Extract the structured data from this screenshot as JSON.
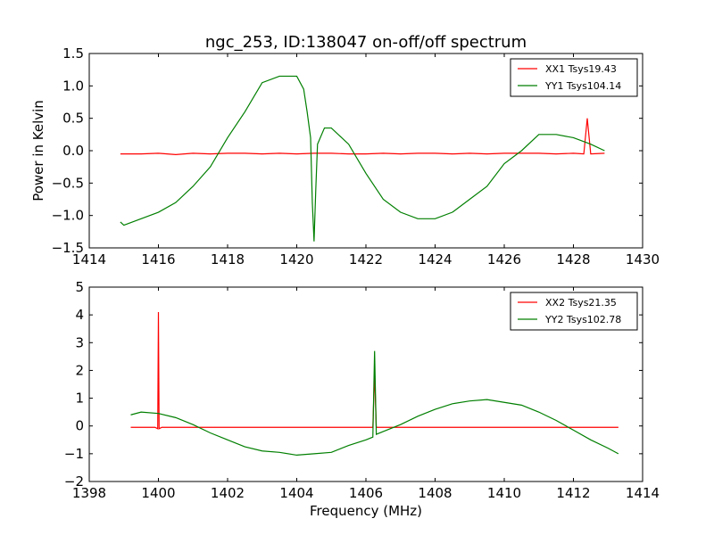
{
  "title": "ngc_253, ID:138047 on-off/off spectrum",
  "colors": {
    "red": "#ff0000",
    "green": "#007f00"
  },
  "chart_data": [
    {
      "type": "line",
      "ylabel": "Power in Kelvin",
      "xlabel": "",
      "xlim": [
        1414,
        1430
      ],
      "ylim": [
        -1.5,
        1.5
      ],
      "xticks": [
        1414,
        1416,
        1418,
        1420,
        1422,
        1424,
        1426,
        1428,
        1430
      ],
      "yticks": [
        -1.5,
        -1.0,
        -0.5,
        0.0,
        0.5,
        1.0,
        1.5
      ],
      "ytick_labels": [
        "−1.5",
        "−1.0",
        "−0.5",
        "0.0",
        "0.5",
        "1.0",
        "1.5"
      ],
      "legend_position": "top-right",
      "series": [
        {
          "name": "XX1 Tsys19.43",
          "color": "#ff0000",
          "x": [
            1414.9,
            1415.5,
            1416.0,
            1416.5,
            1417.0,
            1417.5,
            1418.0,
            1418.5,
            1419.0,
            1419.5,
            1420.0,
            1420.5,
            1421.0,
            1421.5,
            1422.0,
            1422.5,
            1423.0,
            1423.5,
            1424.0,
            1424.5,
            1425.0,
            1425.5,
            1426.0,
            1426.5,
            1427.0,
            1427.5,
            1428.0,
            1428.3,
            1428.4,
            1428.5,
            1428.9
          ],
          "values": [
            -0.05,
            -0.05,
            -0.04,
            -0.06,
            -0.04,
            -0.05,
            -0.04,
            -0.04,
            -0.05,
            -0.04,
            -0.05,
            -0.04,
            -0.04,
            -0.05,
            -0.05,
            -0.04,
            -0.05,
            -0.04,
            -0.04,
            -0.05,
            -0.04,
            -0.05,
            -0.04,
            -0.04,
            -0.04,
            -0.05,
            -0.04,
            -0.05,
            0.5,
            -0.05,
            -0.04
          ]
        },
        {
          "name": "YY1 Tsys104.14",
          "color": "#007f00",
          "x": [
            1414.9,
            1415.0,
            1415.5,
            1416.0,
            1416.5,
            1417.0,
            1417.5,
            1418.0,
            1418.5,
            1419.0,
            1419.5,
            1420.0,
            1420.2,
            1420.3,
            1420.4,
            1420.45,
            1420.5,
            1420.55,
            1420.6,
            1420.8,
            1421.0,
            1421.5,
            1422.0,
            1422.5,
            1423.0,
            1423.5,
            1424.0,
            1424.5,
            1425.0,
            1425.5,
            1426.0,
            1426.5,
            1427.0,
            1427.5,
            1428.0,
            1428.5,
            1428.9
          ],
          "values": [
            -1.1,
            -1.15,
            -1.05,
            -0.95,
            -0.8,
            -0.55,
            -0.25,
            0.2,
            0.6,
            1.05,
            1.15,
            1.15,
            0.95,
            0.6,
            0.2,
            -0.8,
            -1.4,
            -0.6,
            0.1,
            0.35,
            0.35,
            0.1,
            -0.35,
            -0.75,
            -0.95,
            -1.05,
            -1.05,
            -0.95,
            -0.75,
            -0.55,
            -0.2,
            0.0,
            0.25,
            0.25,
            0.2,
            0.1,
            0.0
          ]
        }
      ]
    },
    {
      "type": "line",
      "xlabel": "Frequency (MHz)",
      "ylabel": "",
      "xlim": [
        1398,
        1414
      ],
      "ylim": [
        -2,
        5
      ],
      "xticks": [
        1398,
        1400,
        1402,
        1404,
        1406,
        1408,
        1410,
        1412,
        1414
      ],
      "yticks": [
        -2,
        -1,
        0,
        1,
        2,
        3,
        4,
        5
      ],
      "ytick_labels": [
        "−2",
        "−1",
        "0",
        "1",
        "2",
        "3",
        "4",
        "5"
      ],
      "legend_position": "top-right",
      "series": [
        {
          "name": "XX2 Tsys21.35",
          "color": "#ff0000",
          "x": [
            1399.2,
            1399.5,
            1399.9,
            1399.98,
            1400.0,
            1400.02,
            1400.1,
            1400.5,
            1401.0,
            1402.0,
            1403.0,
            1404.0,
            1405.0,
            1406.0,
            1406.2,
            1406.25,
            1406.3,
            1406.4,
            1407.0,
            1408.0,
            1409.0,
            1410.0,
            1411.0,
            1412.0,
            1413.0,
            1413.3
          ],
          "values": [
            -0.05,
            -0.05,
            -0.05,
            -0.1,
            4.1,
            -0.1,
            -0.05,
            -0.05,
            -0.05,
            -0.05,
            -0.05,
            -0.05,
            -0.05,
            -0.05,
            -0.05,
            1.9,
            -0.05,
            -0.05,
            -0.05,
            -0.05,
            -0.05,
            -0.05,
            -0.05,
            -0.05,
            -0.05,
            -0.05
          ]
        },
        {
          "name": "YY2 Tsys102.78",
          "color": "#007f00",
          "x": [
            1399.2,
            1399.5,
            1400.0,
            1400.5,
            1401.0,
            1401.5,
            1402.0,
            1402.5,
            1403.0,
            1403.5,
            1404.0,
            1404.5,
            1405.0,
            1405.5,
            1406.0,
            1406.2,
            1406.25,
            1406.3,
            1406.5,
            1407.0,
            1407.5,
            1408.0,
            1408.5,
            1409.0,
            1409.5,
            1410.0,
            1410.5,
            1411.0,
            1411.5,
            1412.0,
            1412.5,
            1413.0,
            1413.3
          ],
          "values": [
            0.4,
            0.5,
            0.45,
            0.3,
            0.05,
            -0.25,
            -0.5,
            -0.75,
            -0.9,
            -0.95,
            -1.05,
            -1.0,
            -0.95,
            -0.7,
            -0.5,
            -0.4,
            2.7,
            -0.3,
            -0.2,
            0.05,
            0.35,
            0.6,
            0.8,
            0.9,
            0.95,
            0.85,
            0.75,
            0.5,
            0.2,
            -0.15,
            -0.5,
            -0.8,
            -1.0
          ]
        }
      ]
    }
  ]
}
